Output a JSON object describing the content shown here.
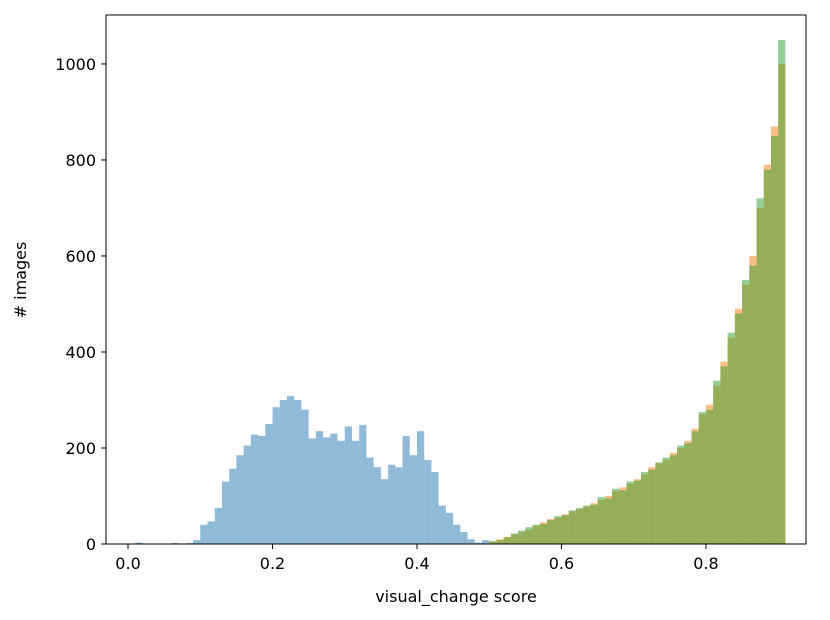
{
  "chart_data": {
    "type": "histogram",
    "x_label": "visual_change score",
    "y_label": "# images",
    "xlim": [
      -0.0305,
      0.9385
    ],
    "ylim": [
      0,
      1102
    ],
    "xticks": [
      {
        "value": 0,
        "label": "0.0"
      },
      0.2,
      0.4,
      0.6,
      0.8
    ],
    "yticks": [
      0,
      200,
      400,
      600,
      800,
      1000
    ],
    "opacity": 0.5,
    "series": [
      {
        "color": "#1f77b4",
        "bins": [
          0.0,
          0.01,
          0.02,
          0.03,
          0.04,
          0.05,
          0.06,
          0.07,
          0.08,
          0.09,
          0.1,
          0.11,
          0.12,
          0.13,
          0.14,
          0.15,
          0.16,
          0.17,
          0.18,
          0.19,
          0.2,
          0.21,
          0.22,
          0.23,
          0.24,
          0.25,
          0.26,
          0.27,
          0.28,
          0.29,
          0.3,
          0.31,
          0.32,
          0.33,
          0.34,
          0.35,
          0.36,
          0.37,
          0.38,
          0.39,
          0.4,
          0.41,
          0.42,
          0.43,
          0.44,
          0.45,
          0.46,
          0.47,
          0.48,
          0.49,
          0.5
        ],
        "values": [
          0,
          3,
          0,
          0,
          0,
          0,
          2,
          0,
          2,
          8,
          40,
          47,
          75,
          130,
          157,
          185,
          205,
          228,
          225,
          250,
          285,
          300,
          308,
          300,
          280,
          220,
          235,
          222,
          230,
          215,
          245,
          215,
          248,
          180,
          160,
          135,
          165,
          160,
          225,
          185,
          235,
          175,
          150,
          80,
          65,
          40,
          25,
          10,
          3,
          8
        ]
      },
      {
        "color": "#ff7f0e",
        "bins": [
          0.5,
          0.51,
          0.52,
          0.53,
          0.54,
          0.55,
          0.56,
          0.57,
          0.58,
          0.59,
          0.6,
          0.61,
          0.62,
          0.63,
          0.64,
          0.65,
          0.66,
          0.67,
          0.68,
          0.69,
          0.7,
          0.71,
          0.72,
          0.73,
          0.74,
          0.75,
          0.76,
          0.77,
          0.78,
          0.79,
          0.8,
          0.81,
          0.82,
          0.83,
          0.84,
          0.85,
          0.86,
          0.87,
          0.88,
          0.89,
          0.9,
          0.91
        ],
        "values": [
          5,
          10,
          15,
          20,
          25,
          30,
          38,
          45,
          52,
          55,
          62,
          68,
          72,
          78,
          85,
          92,
          100,
          110,
          118,
          125,
          135,
          145,
          160,
          168,
          175,
          190,
          200,
          215,
          240,
          270,
          290,
          330,
          380,
          430,
          490,
          540,
          600,
          700,
          790,
          870,
          1000
        ]
      },
      {
        "color": "#2ca02c",
        "bins": [
          0.5,
          0.51,
          0.52,
          0.53,
          0.54,
          0.55,
          0.56,
          0.57,
          0.58,
          0.59,
          0.6,
          0.61,
          0.62,
          0.63,
          0.64,
          0.65,
          0.66,
          0.67,
          0.68,
          0.69,
          0.7,
          0.71,
          0.72,
          0.73,
          0.74,
          0.75,
          0.76,
          0.77,
          0.78,
          0.79,
          0.8,
          0.81,
          0.82,
          0.83,
          0.84,
          0.85,
          0.86,
          0.87,
          0.88,
          0.89,
          0.9,
          0.91
        ],
        "values": [
          6,
          8,
          14,
          22,
          28,
          35,
          40,
          42,
          50,
          58,
          60,
          70,
          75,
          80,
          82,
          98,
          95,
          115,
          112,
          130,
          132,
          150,
          155,
          170,
          180,
          185,
          205,
          210,
          235,
          275,
          280,
          340,
          370,
          440,
          480,
          550,
          580,
          720,
          780,
          850,
          1050
        ]
      }
    ]
  }
}
